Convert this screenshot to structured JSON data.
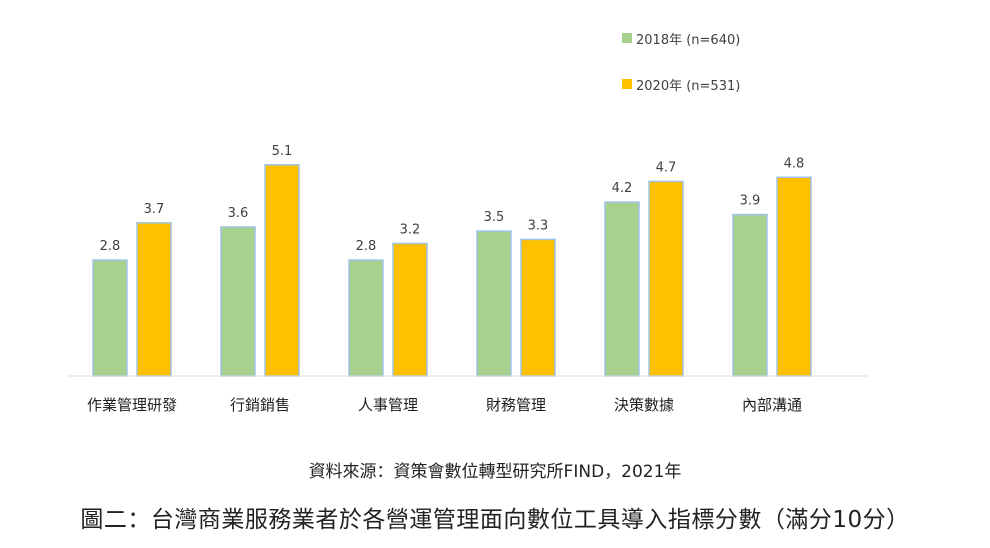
{
  "chart_data": {
    "type": "bar",
    "categories": [
      "作業管理研發",
      "行銷銷售",
      "人事管理",
      "財務管理",
      "決策數據",
      "內部溝通"
    ],
    "series": [
      {
        "name": "2018年 (n=640)",
        "values": [
          2.8,
          3.6,
          2.8,
          3.5,
          4.2,
          3.9
        ],
        "color": "#a9d18e"
      },
      {
        "name": "2020年 (n=531)",
        "values": [
          3.7,
          5.1,
          3.2,
          3.3,
          4.7,
          4.8
        ],
        "color": "#ffc000"
      }
    ],
    "ylim": [
      0,
      6
    ],
    "grid": false,
    "legend_position": "top-right",
    "bar_border_color": "#9dc3e6"
  },
  "source_text": "資料來源：資策會數位轉型研究所FIND，2021年",
  "caption_text": "圖二：台灣商業服務業者於各營運管理面向數位工具導入指標分數（滿分10分）"
}
